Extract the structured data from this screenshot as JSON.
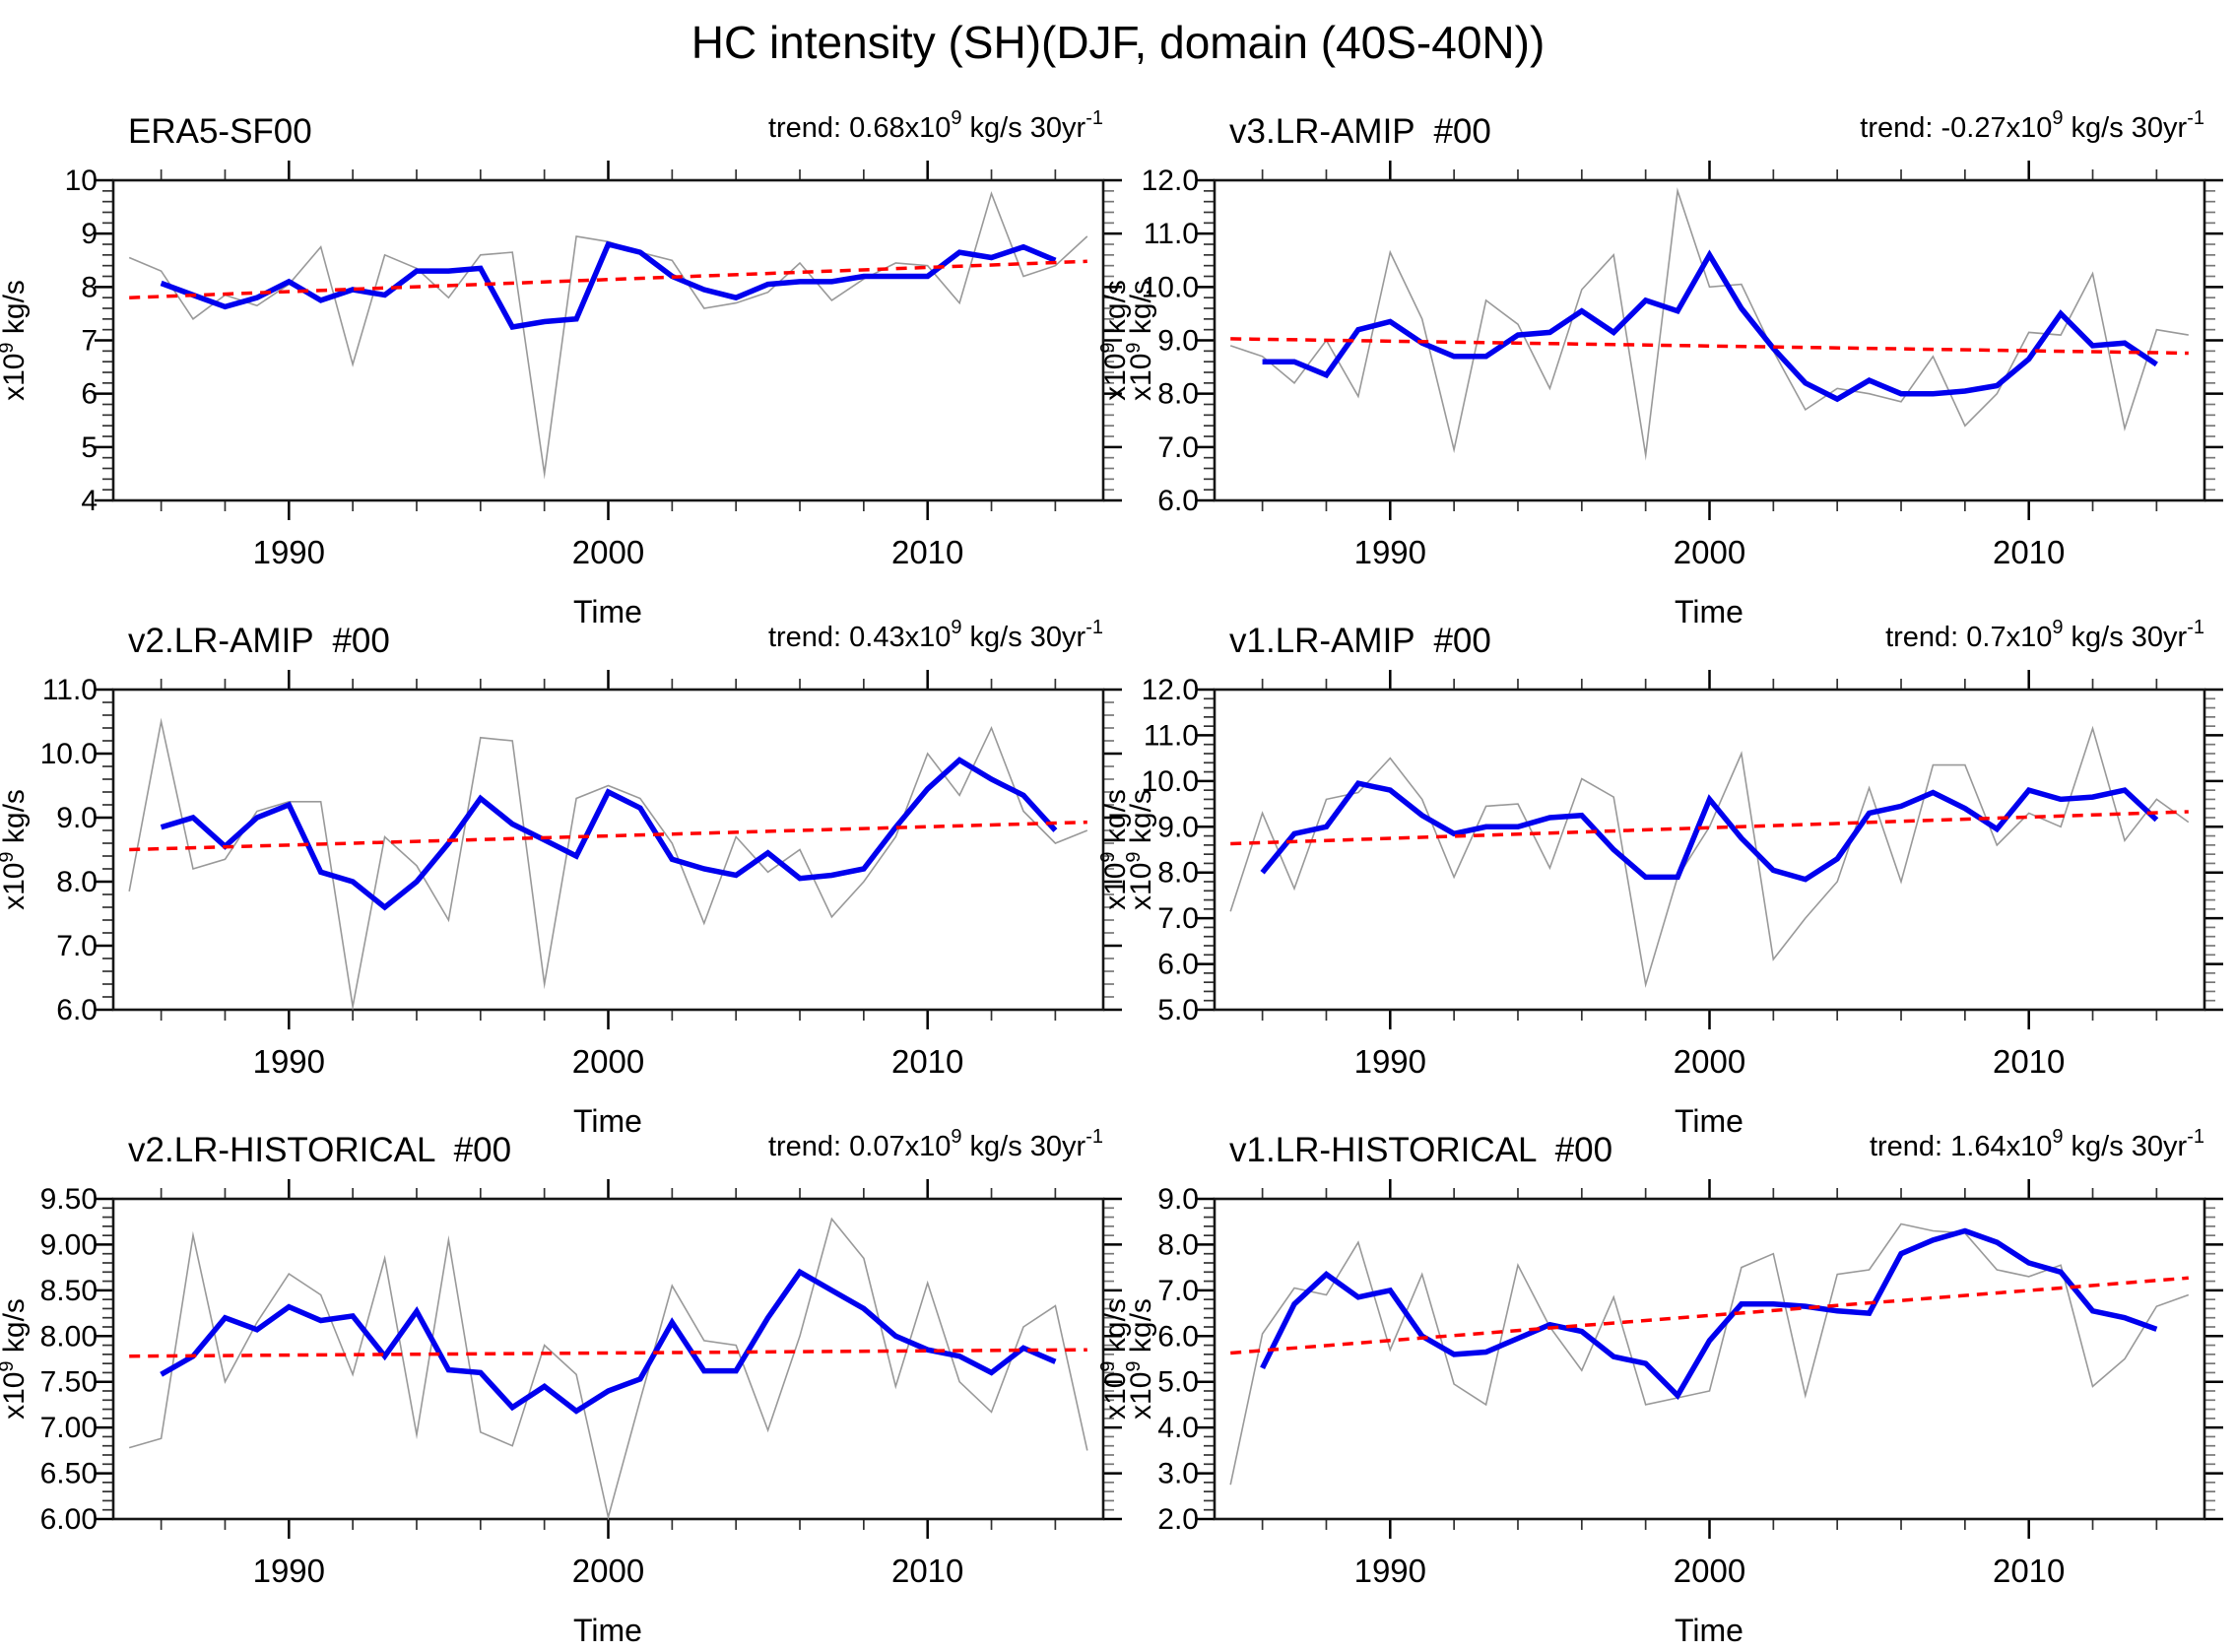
{
  "title": "HC intensity (SH)(DJF, domain (40S-40N))",
  "colors": {
    "annual": "#999999",
    "smoothed": "#0000ee",
    "trend": "#ff0000",
    "axes": "#000000"
  },
  "chart_data": [
    {
      "type": "line",
      "title": "ERA5-SF00",
      "trend_label": {
        "prefix": "trend: 0.68x10",
        "exponent": "9",
        "mid": " kg/s 30yr",
        "exponent2": "-1"
      },
      "ylabel": {
        "prefix": "x10",
        "exp": "9",
        "suffix": " kg/s"
      },
      "ylabel_right": true,
      "xlabel": "Time",
      "xlim": [
        1984.5,
        2015.5
      ],
      "ylim": [
        4,
        10
      ],
      "ystep": 1.0,
      "yminor": 0.2,
      "ytick_labels": [
        "4",
        "5",
        "6",
        "7",
        "8",
        "9",
        "10"
      ],
      "xticks": [
        {
          "value": 1990,
          "label": "1990"
        },
        {
          "value": 2000,
          "label": "2000"
        },
        {
          "value": 2010,
          "label": "2010"
        }
      ],
      "xminor_years": {
        "start": 1986,
        "end": 2014,
        "step": 2
      },
      "series": [
        {
          "name": "annual",
          "color": "#999999",
          "width": 1.6,
          "x_start": 1985,
          "values": [
            8.55,
            8.3,
            7.4,
            7.85,
            7.65,
            8.05,
            8.75,
            6.55,
            8.6,
            8.35,
            7.8,
            8.6,
            8.65,
            4.5,
            8.95,
            8.85,
            8.65,
            8.5,
            7.6,
            7.7,
            7.9,
            8.45,
            7.75,
            8.15,
            8.45,
            8.4,
            7.7,
            9.75,
            8.2,
            8.4,
            8.95
          ]
        },
        {
          "name": "smoothed",
          "color": "#0000ee",
          "width": 5.5,
          "x_start": 1986,
          "values": [
            8.07,
            7.85,
            7.63,
            7.8,
            8.1,
            7.75,
            7.95,
            7.85,
            8.3,
            8.3,
            8.35,
            7.25,
            7.35,
            7.4,
            8.8,
            8.65,
            8.2,
            7.95,
            7.8,
            8.05,
            8.1,
            8.1,
            8.2,
            8.2,
            8.2,
            8.65,
            8.55,
            8.75,
            8.5
          ]
        },
        {
          "name": "trend",
          "color": "#ff0000",
          "width": 3.5,
          "dash": true,
          "x": [
            1985,
            2015
          ],
          "values": [
            7.8,
            8.48
          ]
        }
      ]
    },
    {
      "type": "line",
      "title": "v3.LR-AMIP  #00",
      "trend_label": {
        "prefix": "trend: -0.27x10",
        "exponent": "9",
        "mid": " kg/s 30yr",
        "exponent2": "-1"
      },
      "ylabel": {
        "prefix": "x10",
        "exp": "9",
        "suffix": " kg/s"
      },
      "ylabel_right": false,
      "xlabel": "Time",
      "xlim": [
        1984.5,
        2015.5
      ],
      "ylim": [
        6,
        12
      ],
      "ystep": 1.0,
      "yminor": 0.2,
      "ytick_labels": [
        "6.0",
        "7.0",
        "8.0",
        "9.0",
        "10.0",
        "11.0",
        "12.0"
      ],
      "xticks": [
        {
          "value": 1990,
          "label": "1990"
        },
        {
          "value": 2000,
          "label": "2000"
        },
        {
          "value": 2010,
          "label": "2010"
        }
      ],
      "xminor_years": {
        "start": 1986,
        "end": 2014,
        "step": 2
      },
      "series": [
        {
          "name": "annual",
          "color": "#999999",
          "width": 1.6,
          "x_start": 1985,
          "values": [
            8.9,
            8.7,
            8.2,
            9.0,
            7.95,
            10.65,
            9.4,
            6.95,
            9.75,
            9.3,
            8.1,
            9.95,
            10.6,
            6.85,
            11.8,
            10.0,
            10.05,
            8.8,
            7.7,
            8.1,
            8.0,
            7.85,
            8.7,
            7.4,
            8.0,
            9.15,
            9.1,
            10.25,
            7.35,
            9.2,
            9.1
          ]
        },
        {
          "name": "smoothed",
          "color": "#0000ee",
          "width": 5.5,
          "x_start": 1986,
          "values": [
            8.6,
            8.6,
            8.35,
            9.2,
            9.35,
            8.95,
            8.7,
            8.7,
            9.1,
            9.15,
            9.55,
            9.15,
            9.75,
            9.55,
            10.6,
            9.6,
            8.85,
            8.2,
            7.9,
            8.25,
            8.0,
            8.0,
            8.05,
            8.15,
            8.65,
            9.5,
            8.9,
            8.95,
            8.55
          ]
        },
        {
          "name": "trend",
          "color": "#ff0000",
          "width": 3.5,
          "dash": true,
          "x": [
            1985,
            2015
          ],
          "values": [
            9.03,
            8.76
          ]
        }
      ]
    },
    {
      "type": "line",
      "title": "v2.LR-AMIP  #00",
      "trend_label": {
        "prefix": "trend: 0.43x10",
        "exponent": "9",
        "mid": " kg/s 30yr",
        "exponent2": "-1"
      },
      "ylabel": {
        "prefix": "x10",
        "exp": "9",
        "suffix": " kg/s"
      },
      "ylabel_right": true,
      "xlabel": "Time",
      "xlim": [
        1984.5,
        2015.5
      ],
      "ylim": [
        6,
        11
      ],
      "ystep": 1.0,
      "yminor": 0.2,
      "ytick_labels": [
        "6.0",
        "7.0",
        "8.0",
        "9.0",
        "10.0",
        "11.0"
      ],
      "xticks": [
        {
          "value": 1990,
          "label": "1990"
        },
        {
          "value": 2000,
          "label": "2000"
        },
        {
          "value": 2010,
          "label": "2010"
        }
      ],
      "xminor_years": {
        "start": 1986,
        "end": 2014,
        "step": 2
      },
      "series": [
        {
          "name": "annual",
          "color": "#999999",
          "width": 1.6,
          "x_start": 1985,
          "values": [
            7.85,
            10.5,
            8.2,
            8.35,
            9.1,
            9.25,
            9.25,
            6.05,
            8.7,
            8.25,
            7.4,
            10.25,
            10.2,
            6.4,
            9.3,
            9.5,
            9.3,
            8.6,
            7.35,
            8.7,
            8.15,
            8.5,
            7.45,
            8.0,
            8.7,
            10.0,
            9.35,
            10.4,
            9.1,
            8.6,
            8.8
          ]
        },
        {
          "name": "smoothed",
          "color": "#0000ee",
          "width": 5.5,
          "x_start": 1986,
          "values": [
            8.85,
            9.0,
            8.55,
            9.0,
            9.2,
            8.15,
            8.0,
            7.6,
            8.0,
            8.6,
            9.3,
            8.9,
            8.65,
            8.4,
            9.4,
            9.15,
            8.35,
            8.2,
            8.1,
            8.45,
            8.05,
            8.1,
            8.2,
            8.85,
            9.45,
            9.9,
            9.6,
            9.35,
            8.8
          ]
        },
        {
          "name": "trend",
          "color": "#ff0000",
          "width": 3.5,
          "dash": true,
          "x": [
            1985,
            2015
          ],
          "values": [
            8.5,
            8.93
          ]
        }
      ]
    },
    {
      "type": "line",
      "title": "v1.LR-AMIP  #00",
      "trend_label": {
        "prefix": "trend: 0.7x10",
        "exponent": "9",
        "mid": " kg/s 30yr",
        "exponent2": "-1"
      },
      "ylabel": {
        "prefix": "x10",
        "exp": "9",
        "suffix": " kg/s"
      },
      "ylabel_right": false,
      "xlabel": "Time",
      "xlim": [
        1984.5,
        2015.5
      ],
      "ylim": [
        5,
        12
      ],
      "ystep": 1.0,
      "yminor": 0.2,
      "ytick_labels": [
        "5.0",
        "6.0",
        "7.0",
        "8.0",
        "9.0",
        "10.0",
        "11.0",
        "12.0"
      ],
      "xticks": [
        {
          "value": 1990,
          "label": "1990"
        },
        {
          "value": 2000,
          "label": "2000"
        },
        {
          "value": 2010,
          "label": "2010"
        }
      ],
      "xminor_years": {
        "start": 1986,
        "end": 2014,
        "step": 2
      },
      "series": [
        {
          "name": "annual",
          "color": "#999999",
          "width": 1.6,
          "x_start": 1985,
          "values": [
            7.15,
            9.3,
            7.65,
            9.6,
            9.75,
            10.5,
            9.6,
            7.9,
            9.45,
            9.5,
            8.1,
            10.05,
            9.65,
            5.55,
            7.9,
            9.0,
            10.6,
            6.1,
            7.0,
            7.8,
            9.85,
            7.8,
            10.35,
            10.35,
            8.6,
            9.3,
            9.0,
            11.15,
            8.7,
            9.6,
            9.1
          ]
        },
        {
          "name": "smoothed",
          "color": "#0000ee",
          "width": 5.5,
          "x_start": 1986,
          "values": [
            8.0,
            8.85,
            9.0,
            9.95,
            9.8,
            9.25,
            8.85,
            9.0,
            9.0,
            9.2,
            9.25,
            8.5,
            7.9,
            7.9,
            9.6,
            8.75,
            8.05,
            7.85,
            8.3,
            9.3,
            9.45,
            9.75,
            9.4,
            8.95,
            9.8,
            9.6,
            9.65,
            9.8,
            9.15
          ]
        },
        {
          "name": "trend",
          "color": "#ff0000",
          "width": 3.5,
          "dash": true,
          "x": [
            1985,
            2015
          ],
          "values": [
            8.63,
            9.33
          ]
        }
      ]
    },
    {
      "type": "line",
      "title": "v2.LR-HISTORICAL  #00",
      "trend_label": {
        "prefix": "trend: 0.07x10",
        "exponent": "9",
        "mid": " kg/s 30yr",
        "exponent2": "-1"
      },
      "ylabel": {
        "prefix": "x10",
        "exp": "9",
        "suffix": " kg/s"
      },
      "ylabel_right": true,
      "xlabel": "Time",
      "xlim": [
        1984.5,
        2015.5
      ],
      "ylim": [
        6,
        9.5
      ],
      "ystep": 0.5,
      "yminor": 0.1,
      "ytick_labels": [
        "6.00",
        "6.50",
        "7.00",
        "7.50",
        "8.00",
        "8.50",
        "9.00",
        "9.50"
      ],
      "xticks": [
        {
          "value": 1990,
          "label": "1990"
        },
        {
          "value": 2000,
          "label": "2000"
        },
        {
          "value": 2010,
          "label": "2010"
        }
      ],
      "xminor_years": {
        "start": 1986,
        "end": 2014,
        "step": 2
      },
      "series": [
        {
          "name": "annual",
          "color": "#999999",
          "width": 1.6,
          "x_start": 1985,
          "values": [
            6.78,
            6.88,
            9.1,
            7.5,
            8.15,
            8.68,
            8.45,
            7.58,
            8.85,
            6.92,
            9.05,
            6.95,
            6.8,
            7.9,
            7.58,
            6.02,
            7.3,
            8.55,
            7.95,
            7.9,
            6.97,
            8.0,
            9.28,
            8.85,
            7.45,
            8.58,
            7.5,
            7.17,
            8.1,
            8.33,
            6.75
          ]
        },
        {
          "name": "smoothed",
          "color": "#0000ee",
          "width": 5.5,
          "x_start": 1986,
          "values": [
            7.58,
            7.78,
            8.2,
            8.07,
            8.32,
            8.17,
            8.22,
            7.78,
            8.27,
            7.63,
            7.6,
            7.22,
            7.45,
            7.18,
            7.4,
            7.53,
            8.15,
            7.62,
            7.62,
            8.2,
            8.7,
            8.5,
            8.3,
            8.0,
            7.85,
            7.78,
            7.6,
            7.87,
            7.72
          ]
        },
        {
          "name": "trend",
          "color": "#ff0000",
          "width": 3.5,
          "dash": true,
          "x": [
            1985,
            2015
          ],
          "values": [
            7.78,
            7.85
          ]
        }
      ]
    },
    {
      "type": "line",
      "title": "v1.LR-HISTORICAL  #00",
      "trend_label": {
        "prefix": "trend: 1.64x10",
        "exponent": "9",
        "mid": " kg/s 30yr",
        "exponent2": "-1"
      },
      "ylabel": {
        "prefix": "x10",
        "exp": "9",
        "suffix": " kg/s"
      },
      "ylabel_right": false,
      "xlabel": "Time",
      "xlim": [
        1984.5,
        2015.5
      ],
      "ylim": [
        2,
        9
      ],
      "ystep": 1.0,
      "yminor": 0.2,
      "ytick_labels": [
        "2.0",
        "3.0",
        "4.0",
        "5.0",
        "6.0",
        "7.0",
        "8.0",
        "9.0"
      ],
      "xticks": [
        {
          "value": 1990,
          "label": "1990"
        },
        {
          "value": 2000,
          "label": "2000"
        },
        {
          "value": 2010,
          "label": "2010"
        }
      ],
      "xminor_years": {
        "start": 1986,
        "end": 2014,
        "step": 2
      },
      "series": [
        {
          "name": "annual",
          "color": "#999999",
          "width": 1.6,
          "x_start": 1985,
          "values": [
            2.75,
            6.05,
            7.05,
            6.9,
            8.05,
            5.7,
            7.35,
            4.95,
            4.5,
            7.55,
            6.2,
            5.25,
            6.85,
            4.5,
            4.65,
            4.8,
            7.5,
            7.8,
            4.7,
            7.35,
            7.45,
            8.45,
            8.3,
            8.25,
            7.45,
            7.3,
            7.55,
            4.9,
            5.5,
            6.65,
            6.9
          ]
        },
        {
          "name": "smoothed",
          "color": "#0000ee",
          "width": 5.5,
          "x_start": 1986,
          "values": [
            5.3,
            6.7,
            7.35,
            6.85,
            7.0,
            6.0,
            5.6,
            5.65,
            5.95,
            6.25,
            6.1,
            5.55,
            5.4,
            4.7,
            5.9,
            6.7,
            6.7,
            6.65,
            6.55,
            6.5,
            7.8,
            8.1,
            8.3,
            8.05,
            7.6,
            7.4,
            6.55,
            6.4,
            6.15
          ]
        },
        {
          "name": "trend",
          "color": "#ff0000",
          "width": 3.5,
          "dash": true,
          "x": [
            1985,
            2015
          ],
          "values": [
            5.63,
            7.27
          ]
        }
      ]
    }
  ]
}
